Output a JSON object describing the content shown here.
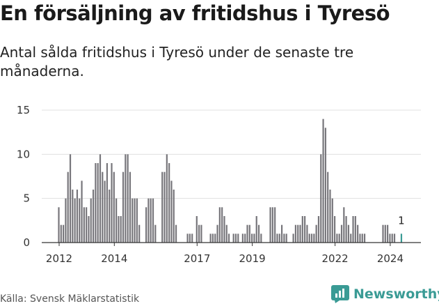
{
  "header": {
    "title": "En försäljning av fritidshus i Tyresö",
    "subtitle": "Antal sålda fritidshus i Tyresö under de senaste tre månaderna."
  },
  "footer": {
    "source": "Källa: Svensk Mäklarstatistik",
    "brand": "Newsworthy",
    "brand_icon": "newsworthy-logo-icon"
  },
  "colors": {
    "bar": "#77767b",
    "highlight": "#3a9b95",
    "grid": "#e0e0e0",
    "axis": "#333333"
  },
  "chart_data": {
    "type": "bar",
    "title": "En försäljning av fritidshus i Tyresö",
    "xlabel": "",
    "ylabel": "",
    "ylim": [
      0,
      15
    ],
    "yticks": [
      "0",
      "5",
      "10",
      "15"
    ],
    "xticks": [
      {
        "label": "2012",
        "month_index": 0
      },
      {
        "label": "2014",
        "month_index": 24
      },
      {
        "label": "2017",
        "month_index": 60
      },
      {
        "label": "2019",
        "month_index": 84
      },
      {
        "label": "2022",
        "month_index": 120
      },
      {
        "label": "2024",
        "month_index": 144
      }
    ],
    "start": "2012-01",
    "values": [
      4,
      2,
      2,
      5,
      8,
      10,
      6,
      5,
      6,
      5,
      7,
      4,
      4,
      3,
      5,
      6,
      9,
      9,
      10,
      8,
      7,
      9,
      6,
      9,
      8,
      5,
      3,
      3,
      8,
      10,
      10,
      8,
      5,
      5,
      5,
      2,
      0,
      0,
      4,
      5,
      5,
      5,
      2,
      0,
      0,
      8,
      8,
      10,
      9,
      7,
      6,
      2,
      0,
      0,
      0,
      0,
      1,
      1,
      1,
      0,
      3,
      2,
      2,
      0,
      0,
      0,
      1,
      1,
      1,
      2,
      4,
      4,
      3,
      2,
      1,
      0,
      1,
      1,
      1,
      0,
      1,
      1,
      2,
      2,
      1,
      1,
      3,
      2,
      1,
      0,
      0,
      0,
      4,
      4,
      4,
      1,
      1,
      2,
      1,
      1,
      0,
      0,
      1,
      2,
      2,
      2,
      3,
      3,
      2,
      1,
      1,
      1,
      2,
      3,
      10,
      14,
      13,
      8,
      6,
      5,
      3,
      1,
      1,
      2,
      4,
      3,
      2,
      1,
      3,
      3,
      2,
      1,
      1,
      1,
      0,
      0,
      0,
      0,
      0,
      0,
      0,
      2,
      2,
      2,
      1,
      1,
      1,
      0,
      0,
      1
    ],
    "highlight_index": 149,
    "annotations": [
      {
        "index": 149,
        "text": "1"
      }
    ]
  }
}
